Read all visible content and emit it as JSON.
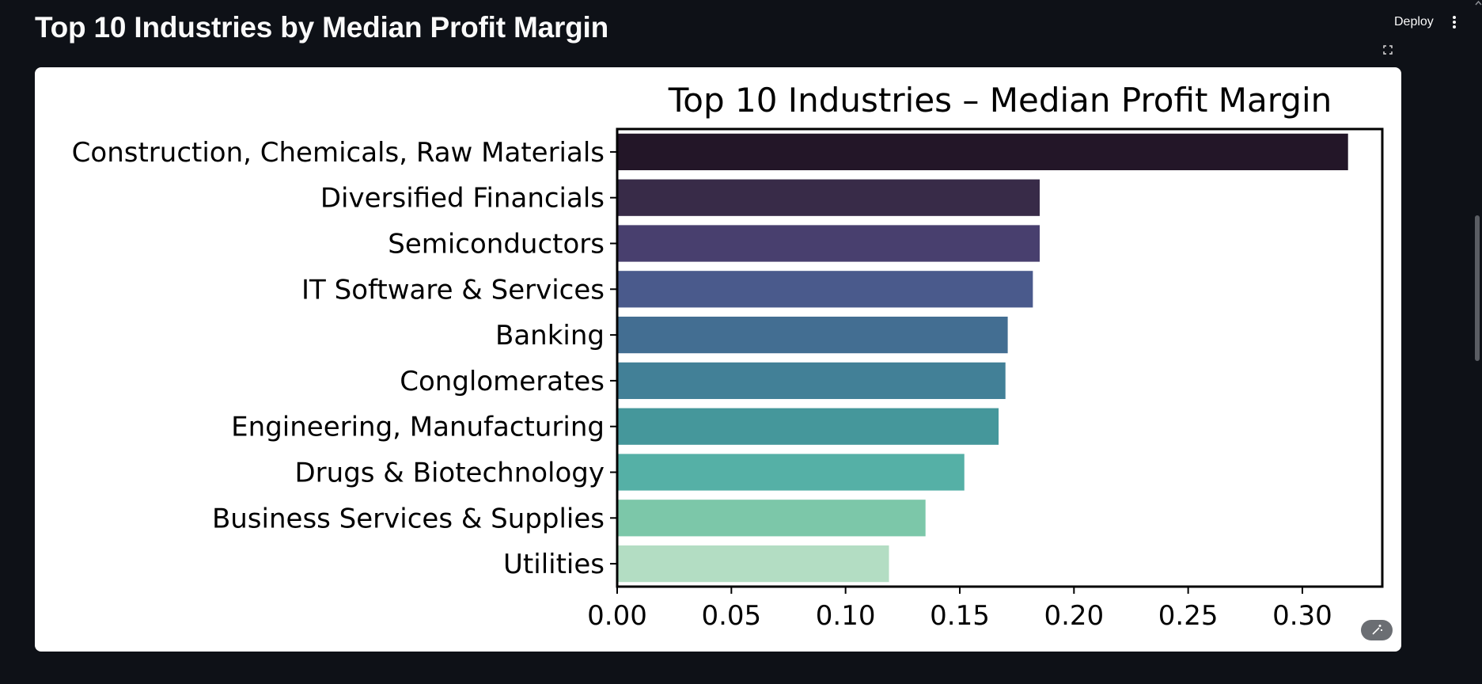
{
  "page": {
    "title": "Top 10 Industries by Median Profit Margin"
  },
  "header": {
    "deploy_label": "Deploy",
    "menu_icon": "vertical-ellipsis-icon",
    "fullscreen_icon": "fullscreen-icon",
    "edit_icon": "magic-wand-icon"
  },
  "colors": {
    "app_background": "#0e1117",
    "chart_background": "#ffffff"
  },
  "chart_data": {
    "type": "bar",
    "orientation": "horizontal",
    "title": "Top 10 Industries – Median Profit Margin",
    "xlabel": "",
    "ylabel": "",
    "xlim": [
      0,
      0.335
    ],
    "xticks": [
      "0.00",
      "0.05",
      "0.10",
      "0.15",
      "0.20",
      "0.25",
      "0.30"
    ],
    "grid": false,
    "legend": "none",
    "palette": "mako",
    "categories": [
      "Construction, Chemicals, Raw Materials",
      "Diversified Financials",
      "Semiconductors",
      "IT Software & Services",
      "Banking",
      "Conglomerates",
      "Engineering, Manufacturing",
      "Drugs & Biotechnology",
      "Business Services & Supplies",
      "Utilities"
    ],
    "values": [
      0.32,
      0.185,
      0.185,
      0.182,
      0.171,
      0.17,
      0.167,
      0.152,
      0.135,
      0.119
    ],
    "colors": [
      "#231628",
      "#382b48",
      "#483f6e",
      "#4a5a8c",
      "#436e92",
      "#428097",
      "#45979b",
      "#55b0a6",
      "#7cc7a9",
      "#b3ddc3"
    ]
  }
}
